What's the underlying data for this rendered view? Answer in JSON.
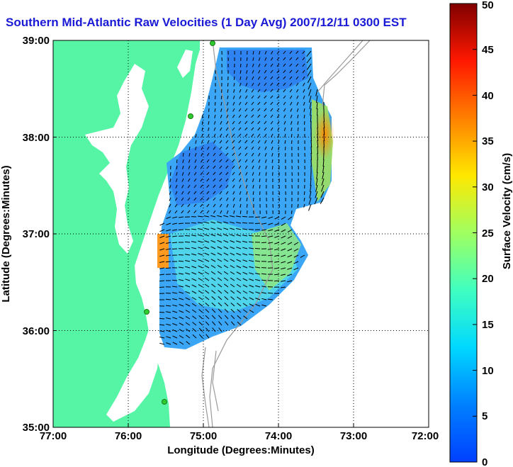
{
  "title": "Southern Mid-Atlantic Raw Velocities (1 Day Avg) 2007/12/11 0300 EST",
  "map": {
    "x_label": "Longitude (Degrees:Minutes)",
    "y_label": "Latitude (Degrees:Minutes)",
    "lon_range": [
      -77,
      -72
    ],
    "lat_range": [
      35,
      39
    ],
    "x_ticks": [
      "77:00",
      "76:00",
      "75:00",
      "74:00",
      "73:00",
      "72:00"
    ],
    "y_ticks": [
      "39:00",
      "38:00",
      "37:00",
      "36:00",
      "35:00"
    ],
    "grid": "dotted",
    "land_color": "#55f5a5",
    "water_color": "#ffffff",
    "bathymetry_color": "#9a9a9a",
    "station_color": "#2ecc2e"
  },
  "colorbar": {
    "label": "Surface Velocity (cm/s)",
    "range": [
      0,
      50
    ],
    "ticks": [
      "0",
      "5",
      "10",
      "15",
      "20",
      "25",
      "30",
      "35",
      "40",
      "45",
      "50"
    ],
    "colormap": "jet"
  }
}
